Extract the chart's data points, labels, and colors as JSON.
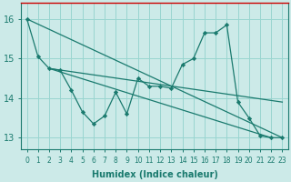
{
  "xlabel": "Humidex (Indice chaleur)",
  "background_color": "#cceae8",
  "grid_color": "#99d5d0",
  "line_color": "#1a7a6e",
  "border_color": "#cc0000",
  "xlim": [
    -0.5,
    23.5
  ],
  "ylim": [
    12.7,
    16.4
  ],
  "yticks": [
    13,
    14,
    15,
    16
  ],
  "xticks": [
    0,
    1,
    2,
    3,
    4,
    5,
    6,
    7,
    8,
    9,
    10,
    11,
    12,
    13,
    14,
    15,
    16,
    17,
    18,
    19,
    20,
    21,
    22,
    23
  ],
  "series1_x": [
    0,
    1,
    2,
    3,
    4,
    5,
    6,
    7,
    8,
    9,
    10,
    11,
    12,
    13,
    14,
    15,
    16,
    17,
    18,
    19,
    20,
    21,
    22,
    23
  ],
  "series1_y": [
    16.0,
    15.05,
    14.75,
    14.7,
    14.2,
    13.65,
    13.35,
    13.55,
    14.15,
    13.6,
    14.5,
    14.3,
    14.3,
    14.25,
    14.85,
    15.0,
    15.65,
    15.65,
    15.85,
    13.9,
    13.5,
    13.05,
    13.0,
    13.0
  ],
  "series2_x": [
    0,
    23
  ],
  "series2_y": [
    16.0,
    13.0
  ],
  "series3_x": [
    2,
    22
  ],
  "series3_y": [
    14.75,
    13.0
  ],
  "series4_x": [
    2,
    23
  ],
  "series4_y": [
    14.75,
    13.9
  ],
  "xlabel_fontsize": 7,
  "tick_fontsize": 5.5,
  "ytick_fontsize": 7
}
